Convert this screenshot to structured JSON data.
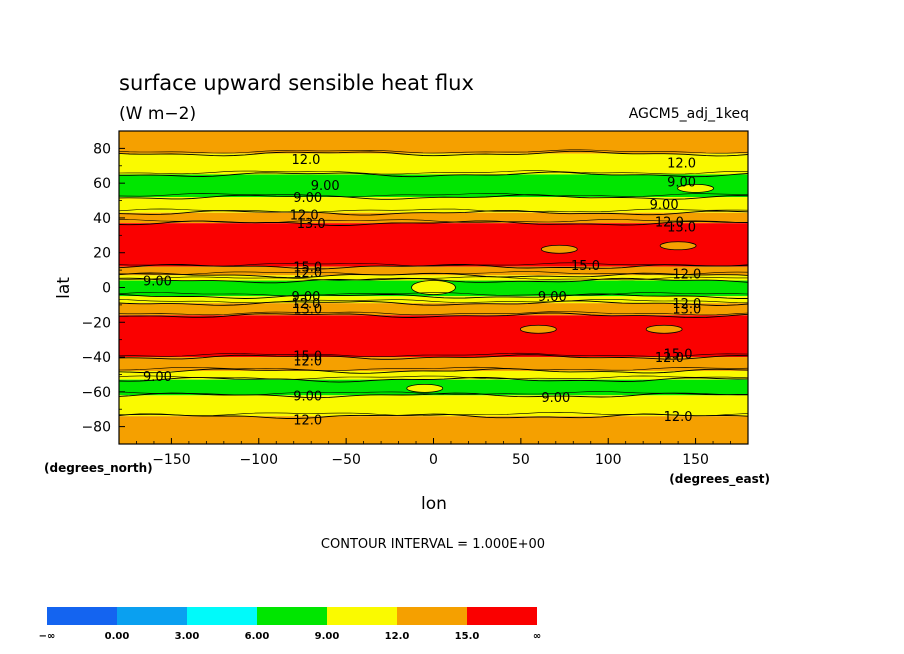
{
  "chart_data": {
    "type": "heatmap",
    "title": "surface upward sensible heat flux",
    "units": "(W m−2)",
    "dataset": "AGCM5_adj_1keq",
    "xlabel": "lon",
    "ylabel": "lat",
    "x_units_label": "(degrees_east)",
    "y_units_label": "(degrees_north)",
    "xlim": [
      -180,
      180
    ],
    "ylim": [
      -90,
      90
    ],
    "x_ticks": [
      {
        "value": -150,
        "label": "−150"
      },
      {
        "value": -100,
        "label": "−100"
      },
      {
        "value": -50,
        "label": "−50"
      },
      {
        "value": 0,
        "label": "0"
      },
      {
        "value": 50,
        "label": "50"
      },
      {
        "value": 100,
        "label": "100"
      },
      {
        "value": 150,
        "label": "150"
      }
    ],
    "y_ticks": [
      {
        "value": 80,
        "label": "80"
      },
      {
        "value": 60,
        "label": "60"
      },
      {
        "value": 40,
        "label": "40"
      },
      {
        "value": 20,
        "label": "20"
      },
      {
        "value": 0,
        "label": "0"
      },
      {
        "value": -20,
        "label": "−20"
      },
      {
        "value": -40,
        "label": "−40"
      },
      {
        "value": -60,
        "label": "−60"
      },
      {
        "value": -80,
        "label": "−80"
      }
    ],
    "contour_interval_text": "CONTOUR INTERVAL = 1.000E+00",
    "levels": [
      {
        "label": "−∞",
        "color": "#1464f0"
      },
      {
        "label": "0.00",
        "color": "#0aa0f0"
      },
      {
        "label": "3.00",
        "color": "#00fafa"
      },
      {
        "label": "6.00",
        "color": "#00e600"
      },
      {
        "label": "9.00",
        "color": "#fafa00"
      },
      {
        "label": "12.0",
        "color": "#f5a000"
      },
      {
        "label": "15.0",
        "color": "#fa0000"
      },
      {
        "label": "∞",
        "color": null
      }
    ],
    "zonal_bands": [
      {
        "lat_from": 90,
        "lat_to": 77,
        "class": "12-15"
      },
      {
        "lat_from": 77,
        "lat_to": 65,
        "class": "9-12"
      },
      {
        "lat_from": 65,
        "lat_to": 52,
        "class": "6-9"
      },
      {
        "lat_from": 52,
        "lat_to": 43,
        "class": "9-12"
      },
      {
        "lat_from": 43,
        "lat_to": 37,
        "class": "12-15"
      },
      {
        "lat_from": 37,
        "lat_to": 12,
        "class": "15+"
      },
      {
        "lat_from": 12,
        "lat_to": 7,
        "class": "12-15"
      },
      {
        "lat_from": 7,
        "lat_to": 4,
        "class": "9-12"
      },
      {
        "lat_from": 4,
        "lat_to": -5,
        "class": "6-9"
      },
      {
        "lat_from": -5,
        "lat_to": -9,
        "class": "9-12"
      },
      {
        "lat_from": -9,
        "lat_to": -16,
        "class": "12-15"
      },
      {
        "lat_from": -16,
        "lat_to": -40,
        "class": "15+"
      },
      {
        "lat_from": -40,
        "lat_to": -48,
        "class": "12-15"
      },
      {
        "lat_from": -48,
        "lat_to": -53,
        "class": "9-12"
      },
      {
        "lat_from": -53,
        "lat_to": -62,
        "class": "6-9"
      },
      {
        "lat_from": -62,
        "lat_to": -74,
        "class": "9-12"
      },
      {
        "lat_from": -74,
        "lat_to": -90,
        "class": "12-15"
      }
    ],
    "features": [
      {
        "lon": 72,
        "lat": 22,
        "class": "12-15"
      },
      {
        "lon": 140,
        "lat": 24,
        "class": "12-15"
      },
      {
        "lon": 60,
        "lat": -24,
        "class": "12-15"
      },
      {
        "lon": 132,
        "lat": -24,
        "class": "12-15"
      },
      {
        "lon": 150,
        "lat": 57,
        "class": "9-12"
      },
      {
        "lon": 0,
        "lat": 0,
        "class": "9-12"
      },
      {
        "lon": -5,
        "lat": -58,
        "class": "9-12"
      }
    ],
    "contour_labels": [
      {
        "lon": -73,
        "lat": 74,
        "text": "12.0"
      },
      {
        "lon": 142,
        "lat": 72,
        "text": "12.0"
      },
      {
        "lon": -62,
        "lat": 59,
        "text": "9.00"
      },
      {
        "lon": 142,
        "lat": 61,
        "text": "9.00"
      },
      {
        "lon": -72,
        "lat": 52,
        "text": "9.00"
      },
      {
        "lon": 132,
        "lat": 48,
        "text": "9.00"
      },
      {
        "lon": -74,
        "lat": 42,
        "text": "12.0"
      },
      {
        "lon": 135,
        "lat": 38,
        "text": "12.0"
      },
      {
        "lon": -70,
        "lat": 37,
        "text": "13.0"
      },
      {
        "lon": 142,
        "lat": 35,
        "text": "13.0"
      },
      {
        "lon": -72,
        "lat": 12,
        "text": "15.0"
      },
      {
        "lon": 87,
        "lat": 13,
        "text": "15.0"
      },
      {
        "lon": -72,
        "lat": 9,
        "text": "12.0"
      },
      {
        "lon": 145,
        "lat": 8,
        "text": "12.0"
      },
      {
        "lon": -158,
        "lat": 4,
        "text": "9.00"
      },
      {
        "lon": -73,
        "lat": -5,
        "text": "9.00"
      },
      {
        "lon": 68,
        "lat": -5,
        "text": "9.00"
      },
      {
        "lon": -73,
        "lat": -9,
        "text": "12.0"
      },
      {
        "lon": -72,
        "lat": -12,
        "text": "13.0"
      },
      {
        "lon": 145,
        "lat": -9,
        "text": "12.0"
      },
      {
        "lon": 145,
        "lat": -12,
        "text": "13.0"
      },
      {
        "lon": -72,
        "lat": -39,
        "text": "15.0"
      },
      {
        "lon": -72,
        "lat": -42,
        "text": "12.0"
      },
      {
        "lon": 140,
        "lat": -38,
        "text": "15.0"
      },
      {
        "lon": 135,
        "lat": -40,
        "text": "12.0"
      },
      {
        "lon": -158,
        "lat": -51,
        "text": "9.00"
      },
      {
        "lon": -72,
        "lat": -62,
        "text": "9.00"
      },
      {
        "lon": 70,
        "lat": -63,
        "text": "9.00"
      },
      {
        "lon": -72,
        "lat": -76,
        "text": "12.0"
      },
      {
        "lon": 140,
        "lat": -74,
        "text": "12.0"
      }
    ]
  }
}
